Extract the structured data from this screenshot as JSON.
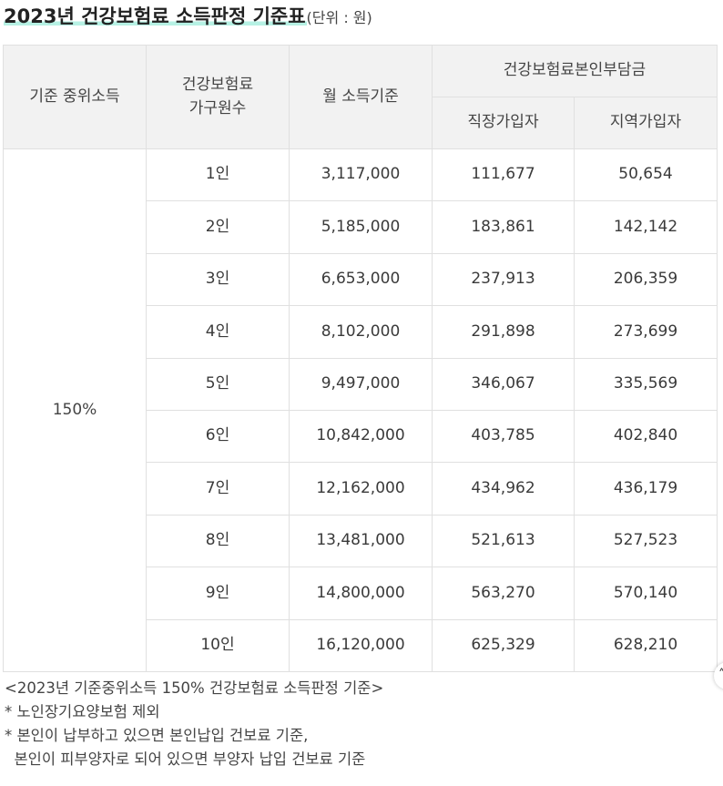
{
  "title": {
    "main": "2023년 건강보험료 소득판정 기준표",
    "unit": "(단위 : 원)"
  },
  "table": {
    "headers": {
      "median_income": "기준 중위소득",
      "household_line1": "건강보험료",
      "household_line2": "가구원수",
      "monthly_income": "월 소득기준",
      "burden_group": "건강보험료본인부담금",
      "employee": "직장가입자",
      "regional": "지역가입자"
    },
    "median_value": "150%",
    "rows": [
      {
        "members": "1인",
        "income": "3,117,000",
        "employee": "111,677",
        "regional": "50,654"
      },
      {
        "members": "2인",
        "income": "5,185,000",
        "employee": "183,861",
        "regional": "142,142"
      },
      {
        "members": "3인",
        "income": "6,653,000",
        "employee": "237,913",
        "regional": "206,359"
      },
      {
        "members": "4인",
        "income": "8,102,000",
        "employee": "291,898",
        "regional": "273,699"
      },
      {
        "members": "5인",
        "income": "9,497,000",
        "employee": "346,067",
        "regional": "335,569"
      },
      {
        "members": "6인",
        "income": "10,842,000",
        "employee": "403,785",
        "regional": "402,840"
      },
      {
        "members": "7인",
        "income": "12,162,000",
        "employee": "434,962",
        "regional": "436,179"
      },
      {
        "members": "8인",
        "income": "13,481,000",
        "employee": "521,613",
        "regional": "527,523"
      },
      {
        "members": "9인",
        "income": "14,800,000",
        "employee": "563,270",
        "regional": "570,140"
      },
      {
        "members": "10인",
        "income": "16,120,000",
        "employee": "625,329",
        "regional": "628,210"
      }
    ]
  },
  "notes": {
    "caption": "<2023년 기준중위소득 150% 건강보험료 소득판정 기준>",
    "note1": "* 노인장기요양보험 제외",
    "note2": "* 본인이 납부하고 있으면 본인납입 건보료 기준,",
    "note3": "  본인이 피부양자로 되어 있으면 부양자 납입 건보료 기준"
  },
  "scroll_button": {
    "icon": "chevron-up-icon",
    "glyph": "˄"
  }
}
